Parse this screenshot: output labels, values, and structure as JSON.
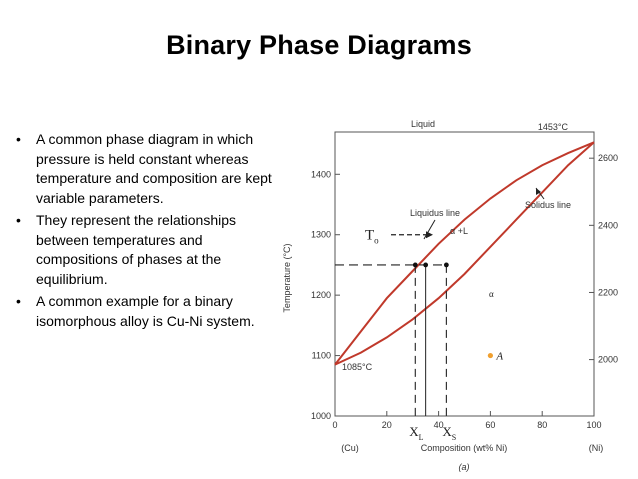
{
  "slide": {
    "title": "Binary Phase Diagrams",
    "bullets": [
      "A common phase diagram in which pressure is held constant whereas temperature and composition are kept variable parameters.",
      "They represent the relationships between temperatures and compositions of phases at the equilibrium.",
      "A common example for a binary isomorphous alloy is Cu-Ni system."
    ],
    "bullet_glyph": "•"
  },
  "diagram": {
    "x_ticks": [
      "0",
      "20",
      "40",
      "60",
      "80",
      "100"
    ],
    "x_tick_values": [
      0,
      20,
      40,
      60,
      80,
      100
    ],
    "y_ticks_left": [
      "1000",
      "1100",
      "1200",
      "1300",
      "1400"
    ],
    "y_tick_values_left": [
      1000,
      1100,
      1200,
      1300,
      1400
    ],
    "y_ticks_right": [
      "2000",
      "2200",
      "2400",
      "2600"
    ],
    "y_tick_values_right": [
      2000,
      2200,
      2400,
      2600
    ],
    "x_label": "Composition (wt% Ni)",
    "x_left_end": "(Cu)",
    "x_right_end": "(Ni)",
    "y_label": "Temperature (°C)",
    "caption": "(a)",
    "labels": {
      "liquid": "Liquid",
      "alpha": "α",
      "alpha_plus_l": "α +L",
      "liquidus": "Liquidus line",
      "solidus": "Solidus line",
      "t_cu": "1085°C",
      "t_ni": "1453°C",
      "to": "T",
      "to_sub": "o",
      "xl": "X",
      "xl_sub": "L",
      "xs": "X",
      "xs_sub": "S",
      "point_a": "A"
    },
    "colors": {
      "curve": "#c0392b",
      "point_a": "#f0a030",
      "axes": "#555555"
    },
    "liquidus_curve": [
      [
        0,
        1085
      ],
      [
        10,
        1140
      ],
      [
        20,
        1195
      ],
      [
        30,
        1240
      ],
      [
        40,
        1285
      ],
      [
        50,
        1325
      ],
      [
        60,
        1360
      ],
      [
        70,
        1390
      ],
      [
        80,
        1415
      ],
      [
        90,
        1435
      ],
      [
        100,
        1453
      ]
    ],
    "solidus_curve": [
      [
        0,
        1085
      ],
      [
        10,
        1105
      ],
      [
        20,
        1130
      ],
      [
        30,
        1160
      ],
      [
        40,
        1195
      ],
      [
        50,
        1235
      ],
      [
        60,
        1280
      ],
      [
        70,
        1325
      ],
      [
        80,
        1370
      ],
      [
        90,
        1415
      ],
      [
        100,
        1453
      ]
    ],
    "tie_line_T": 1250,
    "to_T": 1300,
    "xl_comp": 31,
    "x0_comp": 35,
    "xs_comp": 43,
    "point_a_comp": 60,
    "point_a_T": 1100
  }
}
